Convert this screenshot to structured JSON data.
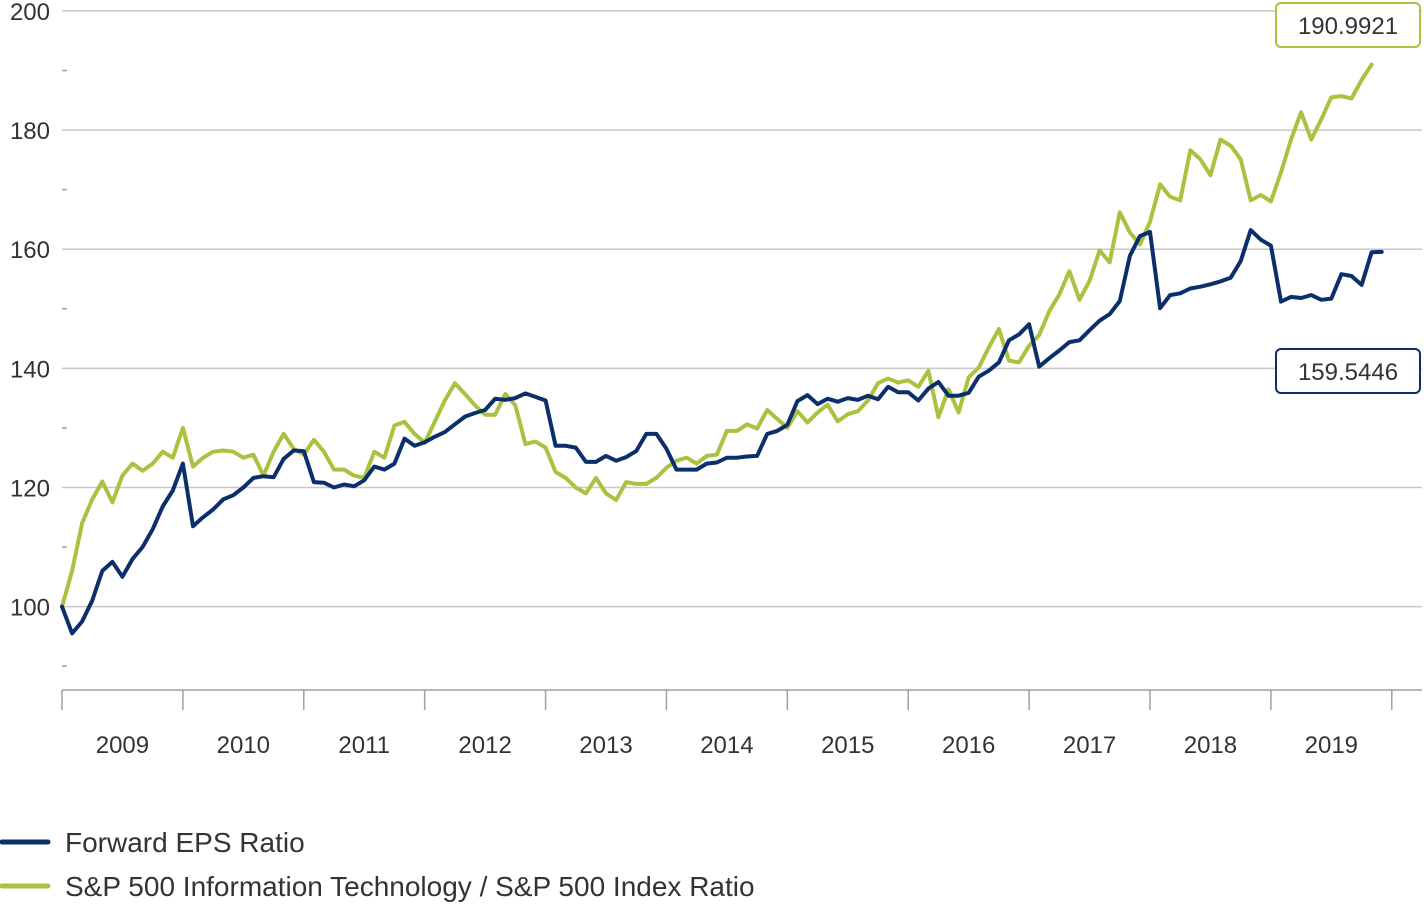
{
  "chart_data": {
    "type": "line",
    "title": "",
    "xlabel": "",
    "ylabel": "",
    "ylim": [
      86,
      201.5
    ],
    "xlim": [
      2008.5,
      2019.75
    ],
    "y_ticks": [
      100,
      120,
      140,
      160,
      180,
      200
    ],
    "y_tick_labels": [
      "100",
      "120",
      "140",
      "160",
      "180",
      "200"
    ],
    "x_year_labels": [
      "2009",
      "2010",
      "2011",
      "2012",
      "2013",
      "2014",
      "2015",
      "2016",
      "2017",
      "2018",
      "2019"
    ],
    "grid": "horizontal",
    "legend_position": "bottom-left",
    "start_year": 2008.5,
    "points_per_year": 12,
    "series": [
      {
        "name": "Forward EPS Ratio",
        "color": "#0b2f6b",
        "end_label": "159.5446",
        "values": [
          100.0,
          95.5,
          97.5,
          101.0,
          106.0,
          107.5,
          105.0,
          108.0,
          110.0,
          113.0,
          116.8,
          119.5,
          124.0,
          113.5,
          115.0,
          116.3,
          118.0,
          118.7,
          120.0,
          121.6,
          121.9,
          121.7,
          124.8,
          126.2,
          126.1,
          120.9,
          120.8,
          120.0,
          120.5,
          120.2,
          121.2,
          123.5,
          123.0,
          124.0,
          128.2,
          127.0,
          127.6,
          128.5,
          129.3,
          130.6,
          131.9,
          132.5,
          133.0,
          134.9,
          134.7,
          135.0,
          135.8,
          135.2,
          134.6,
          127.0,
          127.0,
          126.7,
          124.3,
          124.3,
          125.3,
          124.5,
          125.1,
          126.1,
          129.0,
          129.0,
          126.5,
          123.0,
          123.0,
          123.0,
          124.0,
          124.2,
          125.0,
          125.0,
          125.2,
          125.3,
          129.0,
          129.5,
          130.5,
          134.5,
          135.5,
          134.0,
          134.9,
          134.4,
          135.0,
          134.7,
          135.4,
          134.8,
          136.9,
          136.0,
          136.0,
          134.6,
          136.6,
          137.7,
          135.4,
          135.4,
          135.9,
          138.6,
          139.6,
          141.0,
          144.7,
          145.7,
          147.4,
          140.3,
          141.7,
          143.0,
          144.4,
          144.7,
          146.4,
          148.0,
          149.1,
          151.3,
          158.9,
          162.2,
          162.9,
          150.1,
          152.3,
          152.6,
          153.4,
          153.7,
          154.1,
          154.6,
          155.2,
          158.0,
          163.2,
          161.6,
          160.6,
          151.2,
          152.0,
          151.8,
          152.3,
          151.5,
          151.7,
          155.8,
          155.5,
          154.0,
          159.5,
          159.5446
        ]
      },
      {
        "name": "S&P 500 Information Technology / S&P 500 Index Ratio",
        "color": "#a9c23f",
        "end_label": "190.9921",
        "values": [
          100.0,
          106.0,
          114.0,
          118.0,
          121.0,
          117.5,
          122.0,
          124.0,
          122.8,
          124.0,
          126.0,
          125.0,
          130.0,
          123.5,
          125.0,
          126.0,
          126.2,
          126.0,
          125.0,
          125.5,
          122.0,
          126.0,
          129.0,
          126.5,
          125.5,
          128.0,
          126.0,
          123.0,
          123.0,
          122.0,
          121.6,
          126.0,
          125.0,
          130.4,
          131.0,
          129.0,
          127.5,
          131.0,
          134.6,
          137.5,
          135.7,
          133.8,
          132.2,
          132.2,
          135.7,
          133.8,
          127.3,
          127.7,
          126.7,
          122.6,
          121.6,
          120.0,
          119.0,
          121.6,
          119.0,
          117.9,
          120.9,
          120.6,
          120.6,
          121.6,
          123.3,
          124.5,
          125.0,
          124.0,
          125.3,
          125.5,
          129.5,
          129.5,
          130.6,
          129.9,
          133.0,
          131.5,
          130.0,
          132.8,
          130.9,
          132.6,
          133.9,
          131.1,
          132.3,
          132.8,
          134.6,
          137.5,
          138.3,
          137.6,
          138.0,
          136.9,
          139.6,
          131.8,
          136.5,
          132.6,
          138.5,
          140.1,
          143.5,
          146.6,
          141.3,
          141.0,
          143.8,
          145.6,
          149.6,
          152.4,
          156.3,
          151.5,
          154.7,
          159.8,
          157.8,
          166.2,
          162.8,
          160.8,
          164.6,
          170.9,
          168.8,
          168.2,
          176.6,
          175.1,
          172.4,
          178.4,
          177.4,
          175.1,
          168.2,
          169.1,
          168.0,
          172.9,
          178.4,
          183.0,
          178.4,
          181.8,
          185.5,
          185.7,
          185.3,
          188.4,
          190.9921
        ]
      }
    ]
  },
  "legend": {
    "items": [
      {
        "label": "Forward EPS Ratio",
        "color": "#0b2f6b"
      },
      {
        "label": "S&P 500 Information Technology / S&P 500 Index Ratio",
        "color": "#a9c23f"
      }
    ]
  }
}
